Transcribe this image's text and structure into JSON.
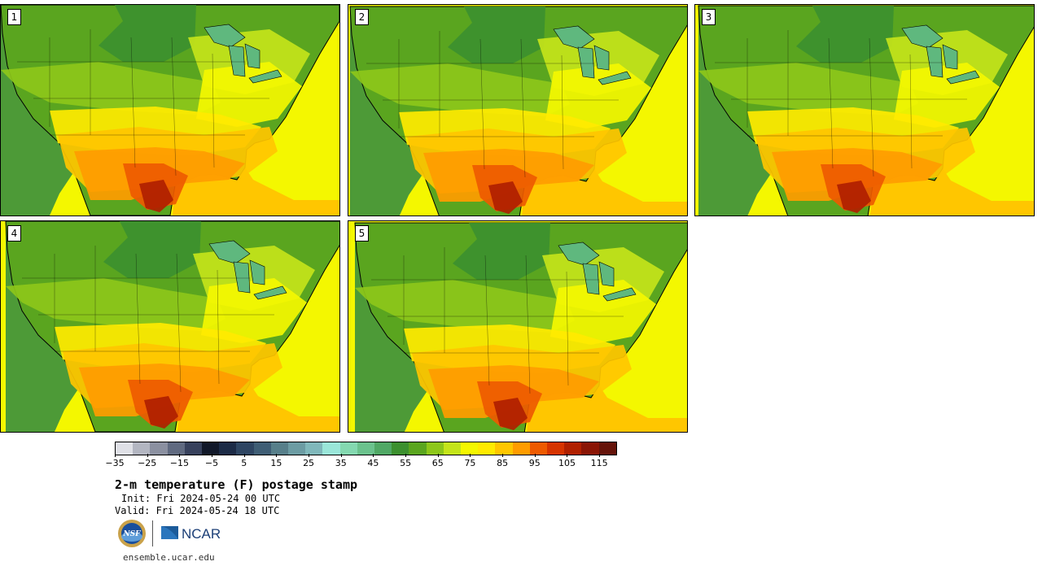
{
  "panels": [
    {
      "label": "1",
      "variant": 0
    },
    {
      "label": "2",
      "variant": 1
    },
    {
      "label": "3",
      "variant": 2
    },
    {
      "label": "4",
      "variant": 3
    },
    {
      "label": "5",
      "variant": 4
    }
  ],
  "colorbar": {
    "colors": [
      "#dfe0e6",
      "#b3b6c1",
      "#8b90a0",
      "#606a80",
      "#37415c",
      "#111829",
      "#1c2b46",
      "#2e4562",
      "#3f5e75",
      "#577f8a",
      "#6c9ca3",
      "#80b8bb",
      "#9ae6d9",
      "#84d8b0",
      "#6bc28d",
      "#50a865",
      "#3c902f",
      "#5aa51f",
      "#8dc71a",
      "#c4e41a",
      "#f4f700",
      "#ffea00",
      "#ffc600",
      "#ff9c00",
      "#ee5a00",
      "#d63400",
      "#b02000",
      "#8a1505",
      "#65140a"
    ],
    "ticks": [
      "−35",
      "−25",
      "−15",
      "−5",
      "5",
      "15",
      "25",
      "35",
      "45",
      "55",
      "65",
      "75",
      "85",
      "95",
      "105",
      "115"
    ],
    "min": -35,
    "max": 120,
    "step": 5
  },
  "title": "2-m temperature (F) postage stamp",
  "init": "Init: Fri 2024-05-24 00 UTC",
  "valid": "Valid: Fri 2024-05-24 18 UTC",
  "logos": {
    "nsf": "NSF",
    "ncar": "NCAR"
  },
  "site": "ensemble.ucar.edu",
  "map_colors": {
    "ocean_west": "#4d9a37",
    "ocean_east": "#f4f700",
    "gulf": "#ffc600",
    "lakes": "#5fb87e"
  }
}
